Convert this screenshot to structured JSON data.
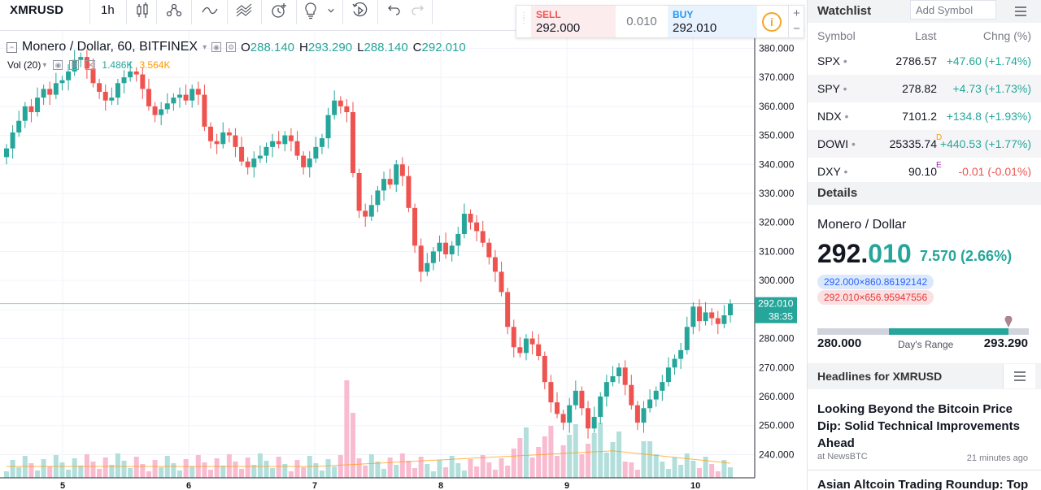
{
  "toolbar": {
    "symbol": "XMRUSD",
    "interval": "1h",
    "icons": [
      "candles-icon",
      "indicators-icon",
      "compare-icon",
      "templates-icon",
      "alert-icon",
      "ideas-icon",
      "chevron-down-icon",
      "replay-icon",
      "undo-icon",
      "redo-icon"
    ]
  },
  "legend": {
    "title": "Monero / Dollar, 60, BITFINEX",
    "open_label": "O",
    "open": "288.140",
    "high_label": "H",
    "high": "293.290",
    "low_label": "L",
    "low": "288.140",
    "close_label": "C",
    "close": "292.010",
    "volume_title": "Vol (20)",
    "volume_value": "1.486K",
    "volume_ma": "3.564K"
  },
  "trade_panel": {
    "sell_label": "SELL",
    "sell_price": "292.000",
    "spread": "0.010",
    "buy_label": "BUY",
    "buy_price": "292.010",
    "zoom_in": "+",
    "zoom_out": "−"
  },
  "price_scale": {
    "ticks": [
      "380.000",
      "370.000",
      "360.000",
      "350.000",
      "340.000",
      "330.000",
      "320.000",
      "310.000",
      "300.000",
      "290.000",
      "280.000",
      "270.000",
      "260.000",
      "250.000",
      "240.000"
    ],
    "last_price": "292.010",
    "countdown": "38:35"
  },
  "time_axis": {
    "ticks": [
      "5",
      "6",
      "7",
      "8",
      "9",
      "10"
    ]
  },
  "colors": {
    "up": "#26a69a",
    "down": "#ef5350",
    "volume_up": "#b2dfdb",
    "volume_down": "#f8bbd0",
    "volume_ma": "#ff9800"
  },
  "chart_data": {
    "type": "candlestick",
    "title": "Monero / Dollar, 60, BITFINEX",
    "xlabel": "",
    "ylabel": "",
    "x_ticks": [
      "5",
      "6",
      "7",
      "8",
      "9",
      "10"
    ],
    "ylim": [
      232,
      386
    ],
    "grid": true,
    "closes": [
      345.5,
      351,
      355,
      360,
      358,
      363,
      366,
      364,
      368,
      369,
      372,
      376,
      377,
      373,
      368,
      365,
      362,
      363,
      368,
      370,
      372,
      371,
      366,
      360,
      357,
      359,
      361,
      363,
      364,
      362,
      366,
      364,
      353,
      348,
      347,
      351,
      350,
      346,
      341,
      339,
      342,
      343,
      346,
      348,
      347,
      350,
      348,
      343,
      339,
      342,
      346,
      349,
      357,
      362,
      360,
      358,
      337,
      324,
      322,
      326,
      331,
      335,
      333,
      340,
      336,
      325,
      312,
      303,
      306,
      310,
      313,
      309,
      312,
      316,
      323,
      320,
      317,
      313,
      308,
      303,
      296,
      284,
      277,
      275,
      280,
      278,
      274,
      265,
      258,
      254,
      251,
      257,
      262,
      256,
      249,
      253,
      260,
      265,
      267,
      270,
      264,
      257,
      251,
      256,
      259,
      262,
      265,
      270,
      273,
      276,
      284,
      291,
      286,
      289,
      287,
      285,
      288,
      292.01
    ],
    "volume": {
      "name": "Vol (20)",
      "last": "1.486K",
      "ma": "3.564K"
    }
  },
  "watchlist": {
    "header": "Watchlist",
    "add_placeholder": "Add Symbol",
    "col_symbol": "Symbol",
    "col_last": "Last",
    "col_change": "Chng (%)",
    "rows": [
      {
        "symbol": "SPX",
        "last": "2786.57",
        "flag": "",
        "change": "+47.60 (+1.74%)",
        "dir": "up"
      },
      {
        "symbol": "SPY",
        "last": "278.82",
        "flag": "",
        "change": "+4.73 (+1.73%)",
        "dir": "up"
      },
      {
        "symbol": "NDX",
        "last": "7101.2",
        "flag": "",
        "change": "+134.8 (+1.93%)",
        "dir": "up"
      },
      {
        "symbol": "DOWI",
        "last": "25335.74",
        "flag": "D",
        "change": "+440.53 (+1.77%)",
        "dir": "up"
      },
      {
        "symbol": "DXY",
        "last": "90.10",
        "flag": "E",
        "change": "-0.01 (-0.01%)",
        "dir": "down"
      }
    ]
  },
  "details": {
    "header": "Details",
    "name": "Monero / Dollar",
    "price_main": "292.",
    "price_dec": "010",
    "change": "7.570 (2.66%)",
    "bid": "292.000×860.86192142",
    "ask": "292.010×656.95947556",
    "range_low": "280.000",
    "range_label": "Day's Range",
    "range_high": "293.290",
    "range_fill_start": 0.338,
    "range_fill_end": 0.905
  },
  "headlines": {
    "header": "Headlines for XMRUSD",
    "items": [
      {
        "title": "Looking Beyond the Bitcoin Price Dip: Solid Technical Improvements Ahead",
        "source": "at NewsBTC",
        "time": "21 minutes ago"
      },
      {
        "title": "Asian Altcoin Trading Roundup: Top"
      }
    ]
  }
}
